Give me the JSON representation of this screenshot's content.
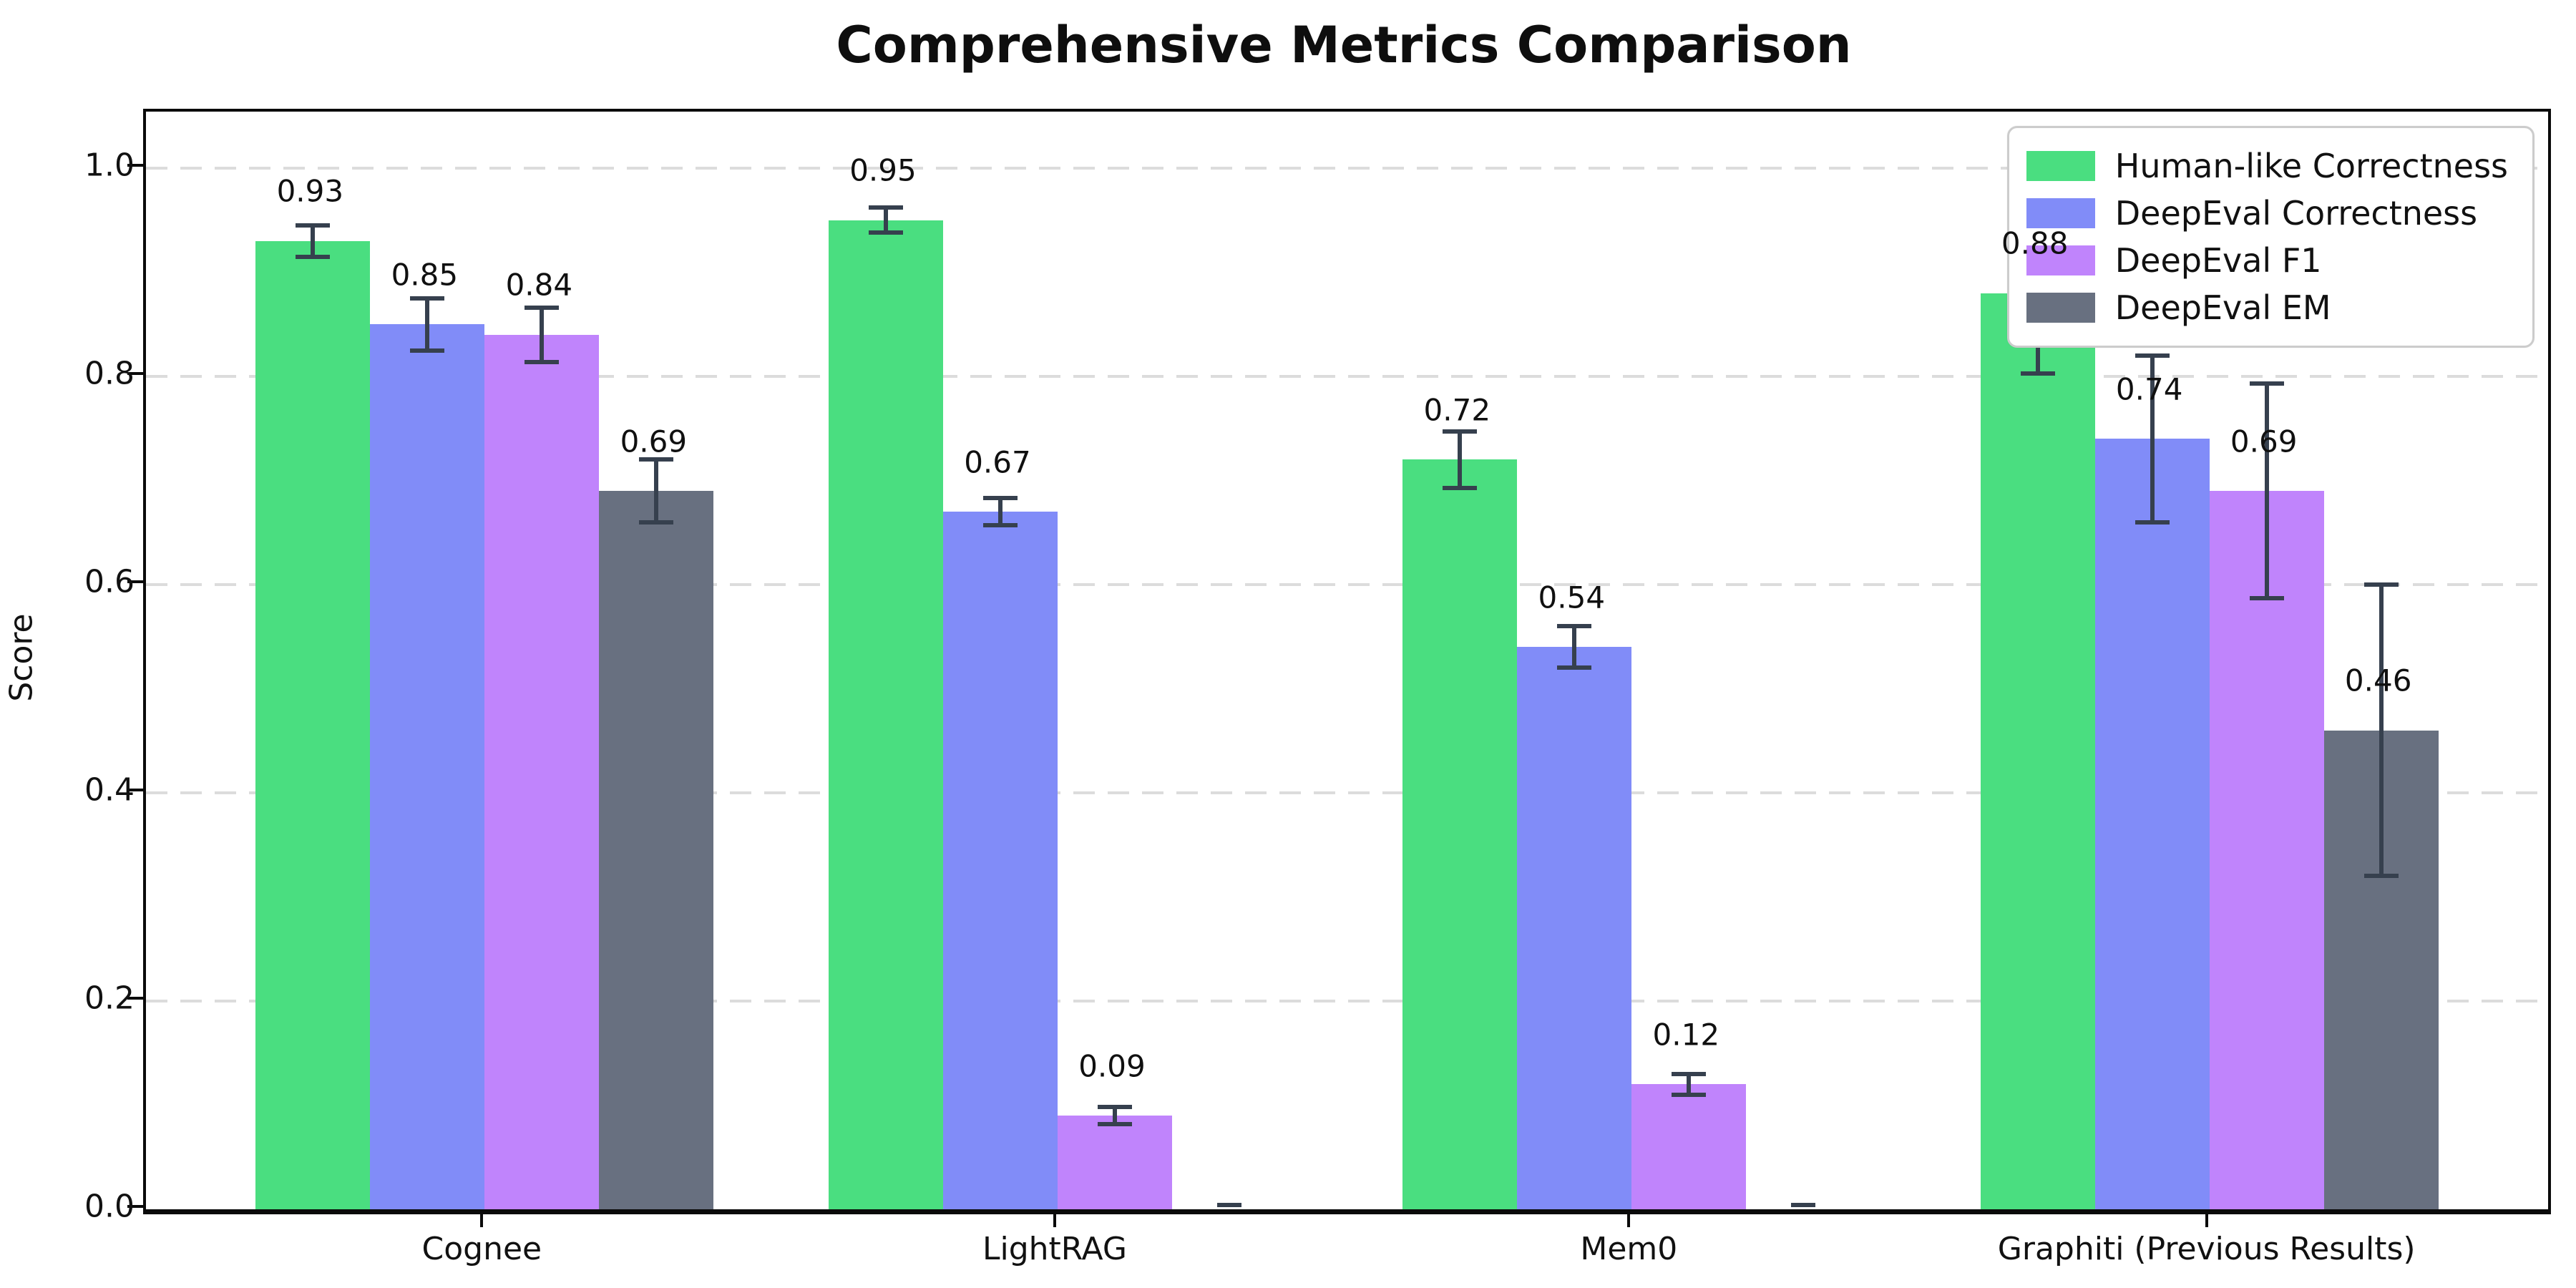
{
  "chart_data": {
    "type": "bar",
    "title": "Comprehensive Metrics Comparison",
    "xlabel": "",
    "ylabel": "Score",
    "categories": [
      "Cognee",
      "LightRAG",
      "Mem0",
      "Graphiti (Previous Results)"
    ],
    "series": [
      {
        "name": "Human-like Correctness",
        "color": "#4ade80",
        "values": [
          0.93,
          0.95,
          0.72,
          0.88
        ],
        "errors": [
          0.015,
          0.012,
          0.027,
          0.077
        ]
      },
      {
        "name": "DeepEval Correctness",
        "color": "#818cf8",
        "values": [
          0.85,
          0.67,
          0.54,
          0.74
        ],
        "errors": [
          0.025,
          0.013,
          0.02,
          0.08
        ]
      },
      {
        "name": "DeepEval F1",
        "color": "#c084fc",
        "values": [
          0.84,
          0.09,
          0.12,
          0.69
        ],
        "errors": [
          0.026,
          0.008,
          0.01,
          0.103
        ]
      },
      {
        "name": "DeepEval EM",
        "color": "#687080",
        "values": [
          0.69,
          0.0,
          0.0,
          0.46
        ],
        "errors": [
          0.03,
          0.004,
          0.004,
          0.14
        ]
      }
    ],
    "bar_value_labels": {
      "Cognee": [
        "0.93",
        "0.85",
        "0.84",
        "0.69"
      ],
      "LightRAG": [
        "0.95",
        "0.67",
        "0.09",
        ""
      ],
      "Mem0": [
        "0.72",
        "0.54",
        "0.12",
        ""
      ],
      "Graphiti (Previous Results)": [
        "0.88",
        "0.74",
        "0.69",
        "0.46"
      ]
    },
    "y_ticks": [
      "0.0",
      "0.2",
      "0.4",
      "0.6",
      "0.8",
      "1.0"
    ],
    "ylim": [
      0,
      1.055
    ],
    "grid": "horizontal dashed",
    "legend_position": "upper right",
    "error_bar_color": "#36404e",
    "gridline_color": "#dcdcdc"
  }
}
